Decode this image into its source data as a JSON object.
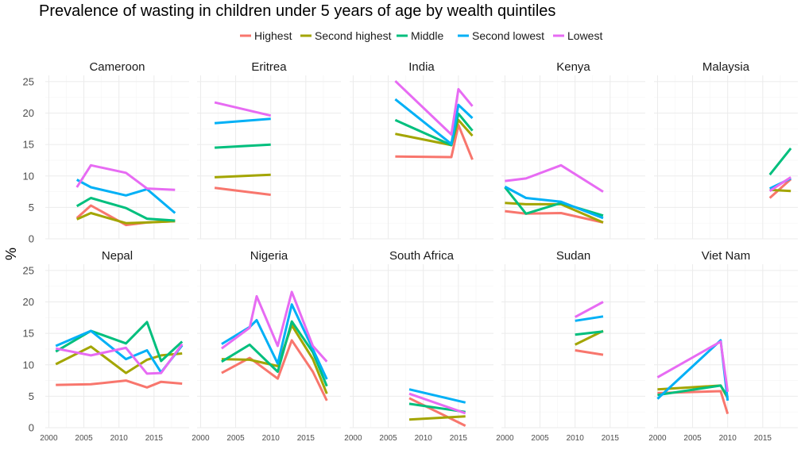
{
  "chart_data": {
    "type": "line",
    "title": "Prevalence of wasting in children under 5 years of age by wealth quintiles",
    "ylabel": "%",
    "xlabel": "",
    "ylim": [
      0,
      26
    ],
    "xlim": [
      1999.5,
      2020
    ],
    "x_ticks": [
      2000,
      2005,
      2010,
      2015
    ],
    "y_ticks": [
      0,
      5,
      10,
      15,
      20,
      25
    ],
    "grid": true,
    "legend": {
      "position": "top"
    },
    "series_names": [
      "Highest",
      "Second highest",
      "Middle",
      "Second lowest",
      "Lowest"
    ],
    "series_colors": [
      "#F8766D",
      "#A3A500",
      "#00BF7D",
      "#00B0F6",
      "#E76BF3"
    ],
    "panels": [
      {
        "name": "Cameroon",
        "series": [
          {
            "name": "Highest",
            "x": [
              2004,
              2006,
              2011,
              2014,
              2018
            ],
            "y": [
              3.3,
              5.3,
              2.2,
              2.6,
              2.8
            ]
          },
          {
            "name": "Second highest",
            "x": [
              2004,
              2006,
              2011,
              2014,
              2018
            ],
            "y": [
              3.1,
              4.1,
              2.5,
              2.6,
              2.8
            ]
          },
          {
            "name": "Middle",
            "x": [
              2004,
              2006,
              2011,
              2014,
              2018
            ],
            "y": [
              5.2,
              6.5,
              4.9,
              3.2,
              2.9
            ]
          },
          {
            "name": "Second lowest",
            "x": [
              2004,
              2006,
              2011,
              2014,
              2018
            ],
            "y": [
              9.4,
              8.2,
              6.9,
              7.9,
              4.1
            ]
          },
          {
            "name": "Lowest",
            "x": [
              2004,
              2006,
              2011,
              2014,
              2018
            ],
            "y": [
              8.2,
              11.7,
              10.5,
              8.0,
              7.8
            ]
          }
        ]
      },
      {
        "name": "Eritrea",
        "series": [
          {
            "name": "Highest",
            "x": [
              2002,
              2010
            ],
            "y": [
              8.1,
              7.0
            ]
          },
          {
            "name": "Second highest",
            "x": [
              2002,
              2010
            ],
            "y": [
              9.8,
              10.2
            ]
          },
          {
            "name": "Middle",
            "x": [
              2002,
              2010
            ],
            "y": [
              14.5,
              15.0
            ]
          },
          {
            "name": "Second lowest",
            "x": [
              2002,
              2010
            ],
            "y": [
              18.4,
              19.1
            ]
          },
          {
            "name": "Lowest",
            "x": [
              2002,
              2010
            ],
            "y": [
              21.7,
              19.6
            ]
          }
        ]
      },
      {
        "name": "India",
        "series": [
          {
            "name": "Highest",
            "x": [
              2006,
              2014,
              2015,
              2017
            ],
            "y": [
              13.1,
              13.0,
              18.1,
              12.6
            ]
          },
          {
            "name": "Second highest",
            "x": [
              2006,
              2014,
              2015,
              2017
            ],
            "y": [
              16.7,
              14.9,
              18.9,
              16.4
            ]
          },
          {
            "name": "Middle",
            "x": [
              2006,
              2014,
              2015,
              2017
            ],
            "y": [
              18.9,
              14.9,
              19.9,
              17.2
            ]
          },
          {
            "name": "Second lowest",
            "x": [
              2006,
              2014,
              2015,
              2017
            ],
            "y": [
              22.2,
              15.1,
              21.3,
              19.2
            ]
          },
          {
            "name": "Lowest",
            "x": [
              2006,
              2014,
              2015,
              2017
            ],
            "y": [
              25.1,
              16.6,
              23.8,
              21.1
            ]
          }
        ]
      },
      {
        "name": "Kenya",
        "series": [
          {
            "name": "Highest",
            "x": [
              2000,
              2003,
              2008,
              2014
            ],
            "y": [
              4.4,
              4.0,
              4.1,
              2.6
            ]
          },
          {
            "name": "Second highest",
            "x": [
              2000,
              2003,
              2008,
              2014
            ],
            "y": [
              5.7,
              5.5,
              5.5,
              2.6
            ]
          },
          {
            "name": "Middle",
            "x": [
              2000,
              2003,
              2008,
              2014
            ],
            "y": [
              8.2,
              4.0,
              5.7,
              3.7
            ]
          },
          {
            "name": "Second lowest",
            "x": [
              2000,
              2003,
              2008,
              2014
            ],
            "y": [
              8.3,
              6.5,
              5.9,
              3.3
            ]
          },
          {
            "name": "Lowest",
            "x": [
              2000,
              2003,
              2008,
              2014
            ],
            "y": [
              9.2,
              9.6,
              11.7,
              7.5
            ]
          }
        ]
      },
      {
        "name": "Malaysia",
        "series": [
          {
            "name": "Highest",
            "x": [
              2016,
              2019
            ],
            "y": [
              6.5,
              9.5
            ]
          },
          {
            "name": "Second highest",
            "x": [
              2016,
              2019
            ],
            "y": [
              7.8,
              7.6
            ]
          },
          {
            "name": "Middle",
            "x": [
              2016,
              2019
            ],
            "y": [
              10.2,
              14.4
            ]
          },
          {
            "name": "Second lowest",
            "x": [
              2016,
              2019
            ],
            "y": [
              8.0,
              9.6
            ]
          },
          {
            "name": "Lowest",
            "x": [
              2016,
              2019
            ],
            "y": [
              7.6,
              9.8
            ]
          }
        ]
      },
      {
        "name": "Nepal",
        "series": [
          {
            "name": "Highest",
            "x": [
              2001,
              2006,
              2011,
              2014,
              2016,
              2019
            ],
            "y": [
              6.8,
              6.9,
              7.5,
              6.4,
              7.3,
              7.0
            ]
          },
          {
            "name": "Second highest",
            "x": [
              2001,
              2006,
              2011,
              2014,
              2016,
              2019
            ],
            "y": [
              10.1,
              12.9,
              8.7,
              10.8,
              11.5,
              11.8
            ]
          },
          {
            "name": "Middle",
            "x": [
              2001,
              2006,
              2011,
              2014,
              2016,
              2019
            ],
            "y": [
              12.1,
              15.4,
              13.4,
              16.8,
              10.6,
              13.7
            ]
          },
          {
            "name": "Second lowest",
            "x": [
              2001,
              2006,
              2011,
              2014,
              2016,
              2019
            ],
            "y": [
              13.0,
              15.4,
              10.9,
              12.3,
              8.8,
              13.1
            ]
          },
          {
            "name": "Lowest",
            "x": [
              2001,
              2006,
              2011,
              2014,
              2016,
              2019
            ],
            "y": [
              12.6,
              11.5,
              12.7,
              8.6,
              8.7,
              13.3
            ]
          }
        ]
      },
      {
        "name": "Nigeria",
        "series": [
          {
            "name": "Highest",
            "x": [
              2003,
              2007,
              2011,
              2013,
              2016,
              2018
            ],
            "y": [
              8.7,
              11.1,
              7.8,
              13.9,
              8.9,
              4.3
            ]
          },
          {
            "name": "Second highest",
            "x": [
              2003,
              2007,
              2011,
              2013,
              2016,
              2018
            ],
            "y": [
              10.9,
              10.8,
              9.8,
              16.3,
              10.9,
              5.4
            ]
          },
          {
            "name": "Middle",
            "x": [
              2003,
              2007,
              2011,
              2013,
              2016,
              2018
            ],
            "y": [
              10.5,
              13.2,
              8.9,
              16.9,
              12.0,
              6.6
            ]
          },
          {
            "name": "Second lowest",
            "x": [
              2003,
              2007,
              2008,
              2011,
              2013,
              2016,
              2018
            ],
            "y": [
              13.3,
              16.0,
              17.1,
              10.2,
              19.6,
              12.5,
              7.7
            ]
          },
          {
            "name": "Lowest",
            "x": [
              2003,
              2007,
              2008,
              2011,
              2013,
              2016,
              2018
            ],
            "y": [
              12.6,
              15.9,
              20.9,
              13.0,
              21.6,
              13.0,
              10.5
            ]
          }
        ]
      },
      {
        "name": "South Africa",
        "series": [
          {
            "name": "Highest",
            "x": [
              2008,
              2016
            ],
            "y": [
              4.7,
              0.3
            ]
          },
          {
            "name": "Second highest",
            "x": [
              2008,
              2016
            ],
            "y": [
              1.3,
              1.8
            ]
          },
          {
            "name": "Middle",
            "x": [
              2008,
              2016
            ],
            "y": [
              3.8,
              2.5
            ]
          },
          {
            "name": "Second lowest",
            "x": [
              2008,
              2016
            ],
            "y": [
              6.1,
              4.0
            ]
          },
          {
            "name": "Lowest",
            "x": [
              2008,
              2016
            ],
            "y": [
              5.4,
              2.3
            ]
          }
        ]
      },
      {
        "name": "Sudan",
        "series": [
          {
            "name": "Highest",
            "x": [
              2010,
              2014
            ],
            "y": [
              12.3,
              11.6
            ]
          },
          {
            "name": "Second highest",
            "x": [
              2010,
              2014
            ],
            "y": [
              13.2,
              15.4
            ]
          },
          {
            "name": "Middle",
            "x": [
              2010,
              2014
            ],
            "y": [
              14.8,
              15.3
            ]
          },
          {
            "name": "Second lowest",
            "x": [
              2010,
              2014
            ],
            "y": [
              17.0,
              17.7
            ]
          },
          {
            "name": "Lowest",
            "x": [
              2010,
              2014
            ],
            "y": [
              17.6,
              20.0
            ]
          }
        ]
      },
      {
        "name": "Viet Nam",
        "series": [
          {
            "name": "Highest",
            "x": [
              2000,
              2009,
              2010
            ],
            "y": [
              5.5,
              5.8,
              2.2
            ]
          },
          {
            "name": "Second highest",
            "x": [
              2000,
              2009,
              2010
            ],
            "y": [
              6.1,
              6.7,
              4.7
            ]
          },
          {
            "name": "Middle",
            "x": [
              2000,
              2009,
              2010
            ],
            "y": [
              5.2,
              6.7,
              4.9
            ]
          },
          {
            "name": "Second lowest",
            "x": [
              2000,
              2009,
              2010
            ],
            "y": [
              4.6,
              13.9,
              4.3
            ]
          },
          {
            "name": "Lowest",
            "x": [
              2000,
              2009,
              2010
            ],
            "y": [
              8.0,
              13.7,
              5.7
            ]
          }
        ]
      }
    ]
  }
}
